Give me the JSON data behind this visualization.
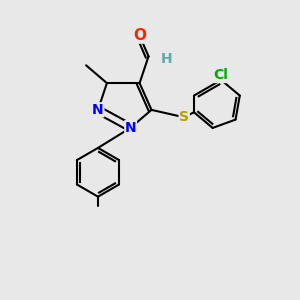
{
  "bg_color": "#e8e8e8",
  "bond_color": "#000000",
  "bond_width": 1.5,
  "atom_colors": {
    "N": "#0000ff",
    "O": "#ff2200",
    "S": "#b8a000",
    "Cl": "#00aa00",
    "H": "#5caaaa",
    "C": "#000000"
  },
  "font_size": 9,
  "fig_size": [
    3.0,
    3.0
  ],
  "dpi": 100
}
